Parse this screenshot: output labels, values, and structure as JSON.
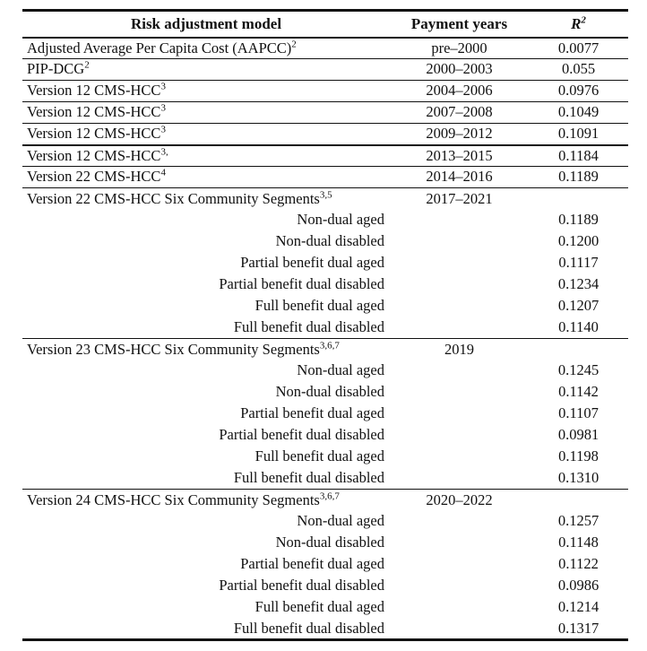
{
  "document": {
    "kind": "academic-paper-table"
  },
  "colors": {
    "text": "#111111",
    "rule": "#111111",
    "background": "#ffffff"
  },
  "table": {
    "header": {
      "model": "Risk adjustment model",
      "years": "Payment years",
      "r2_base": "R",
      "r2_sup": "2"
    },
    "rows": [
      {
        "type": "main",
        "model": "Adjusted Average Per Capita Cost (AAPCC)",
        "sup": "2",
        "years": "pre–2000",
        "r2": "0.0077",
        "rule_after": "thin"
      },
      {
        "type": "main",
        "model": "PIP-DCG",
        "sup": "2",
        "years": "2000–2003",
        "r2": "0.055",
        "rule_after": "thin"
      },
      {
        "type": "main",
        "model": "Version 12 CMS-HCC",
        "sup": "3",
        "years": "2004–2006",
        "r2": "0.0976",
        "rule_after": "thin"
      },
      {
        "type": "main",
        "model": "Version 12 CMS-HCC",
        "sup": "3",
        "years": "2007–2008",
        "r2": "0.1049",
        "rule_after": "thin"
      },
      {
        "type": "main",
        "model": "Version 12 CMS-HCC",
        "sup": "3",
        "years": "2009–2012",
        "r2": "0.1091",
        "rule_after": "medium"
      },
      {
        "type": "main",
        "model": "Version 12 CMS-HCC",
        "sup": "3,",
        "years": "2013–2015",
        "r2": "0.1184",
        "rule_after": "thin"
      },
      {
        "type": "main",
        "model": "Version 22 CMS-HCC",
        "sup": "4",
        "years": "2014–2016",
        "r2": "0.1189",
        "rule_after": "thin"
      },
      {
        "type": "main",
        "model": "Version 22 CMS-HCC Six Community Segments",
        "sup": "3,5",
        "years": "2017–2021",
        "r2": "",
        "rule_after": "none"
      },
      {
        "type": "sub",
        "model": "Non-dual aged",
        "sup": "",
        "years": "",
        "r2": "0.1189",
        "rule_after": "none"
      },
      {
        "type": "sub",
        "model": "Non-dual disabled",
        "sup": "",
        "years": "",
        "r2": "0.1200",
        "rule_after": "none"
      },
      {
        "type": "sub",
        "model": "Partial benefit dual aged",
        "sup": "",
        "years": "",
        "r2": "0.1117",
        "rule_after": "none"
      },
      {
        "type": "sub",
        "model": "Partial benefit dual disabled",
        "sup": "",
        "years": "",
        "r2": "0.1234",
        "rule_after": "none"
      },
      {
        "type": "sub",
        "model": "Full benefit dual aged",
        "sup": "",
        "years": "",
        "r2": "0.1207",
        "rule_after": "none"
      },
      {
        "type": "sub",
        "model": "Full benefit dual disabled",
        "sup": "",
        "years": "",
        "r2": "0.1140",
        "rule_after": "thin"
      },
      {
        "type": "main",
        "model": "Version 23 CMS-HCC Six Community Segments",
        "sup": "3,6,7",
        "years": "2019",
        "r2": "",
        "rule_after": "none"
      },
      {
        "type": "sub",
        "model": "Non-dual aged",
        "sup": "",
        "years": "",
        "r2": "0.1245",
        "rule_after": "none"
      },
      {
        "type": "sub",
        "model": "Non-dual disabled",
        "sup": "",
        "years": "",
        "r2": "0.1142",
        "rule_after": "none"
      },
      {
        "type": "sub",
        "model": "Partial benefit dual aged",
        "sup": "",
        "years": "",
        "r2": "0.1107",
        "rule_after": "none"
      },
      {
        "type": "sub",
        "model": "Partial benefit dual disabled",
        "sup": "",
        "years": "",
        "r2": "0.0981",
        "rule_after": "none"
      },
      {
        "type": "sub",
        "model": "Full benefit dual aged",
        "sup": "",
        "years": "",
        "r2": "0.1198",
        "rule_after": "none"
      },
      {
        "type": "sub",
        "model": "Full benefit dual disabled",
        "sup": "",
        "years": "",
        "r2": "0.1310",
        "rule_after": "thin"
      },
      {
        "type": "main",
        "model": "Version 24 CMS-HCC Six Community Segments",
        "sup": "3,6,7",
        "years": "2020–2022",
        "r2": "",
        "rule_after": "none"
      },
      {
        "type": "sub",
        "model": "Non-dual aged",
        "sup": "",
        "years": "",
        "r2": "0.1257",
        "rule_after": "none"
      },
      {
        "type": "sub",
        "model": "Non-dual disabled",
        "sup": "",
        "years": "",
        "r2": "0.1148",
        "rule_after": "none"
      },
      {
        "type": "sub",
        "model": "Partial benefit dual aged",
        "sup": "",
        "years": "",
        "r2": "0.1122",
        "rule_after": "none"
      },
      {
        "type": "sub",
        "model": "Partial benefit dual disabled",
        "sup": "",
        "years": "",
        "r2": "0.0986",
        "rule_after": "none"
      },
      {
        "type": "sub",
        "model": "Full benefit dual aged",
        "sup": "",
        "years": "",
        "r2": "0.1214",
        "rule_after": "none"
      },
      {
        "type": "sub",
        "model": "Full benefit dual disabled",
        "sup": "",
        "years": "",
        "r2": "0.1317",
        "rule_after": "none"
      }
    ]
  }
}
